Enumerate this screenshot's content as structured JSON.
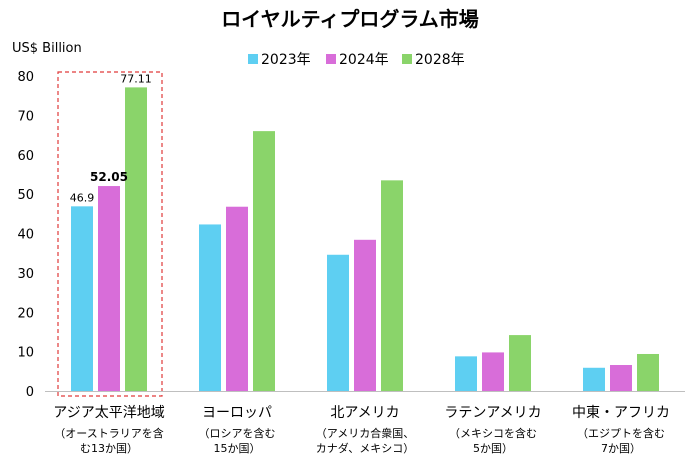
{
  "chart_data": {
    "type": "bar",
    "title": "ロイヤルティプログラム市場",
    "ylabel": "US$ Billion",
    "ylim": [
      0,
      80
    ],
    "yticks": [
      0,
      10,
      20,
      30,
      40,
      50,
      60,
      70,
      80
    ],
    "grid": false,
    "legend_position": "top",
    "categories": [
      "アジア太平洋地域",
      "ヨーロッパ",
      "北アメリカ",
      "ラテンアメリカ",
      "中東・アフリカ"
    ],
    "category_notes": [
      [
        "（オーストラリアを含",
        "む13か国）"
      ],
      [
        "（ロシアを含む",
        "15か国）"
      ],
      [
        "（アメリカ合衆国、",
        "カナダ、メキシコ）"
      ],
      [
        "（メキシコを含む",
        "5か国）"
      ],
      [
        "（エジプトを含む",
        "7か国）"
      ]
    ],
    "series": [
      {
        "name": "2023年",
        "color": "#5ecff2",
        "values": [
          46.9,
          42.3,
          34.6,
          8.8,
          5.9
        ]
      },
      {
        "name": "2024年",
        "color": "#d86dd9",
        "values": [
          52.05,
          46.8,
          38.4,
          9.8,
          6.6
        ]
      },
      {
        "name": "2028年",
        "color": "#8ad46a",
        "values": [
          77.11,
          66.0,
          53.5,
          14.2,
          9.4
        ]
      }
    ],
    "data_labels": [
      {
        "series": 0,
        "category": 0,
        "text": "46.9",
        "bold": false
      },
      {
        "series": 1,
        "category": 0,
        "text": "52.05",
        "bold": true
      },
      {
        "series": 2,
        "category": 0,
        "text": "77.11",
        "bold": false
      }
    ],
    "highlight": {
      "category": 0,
      "style": "dashed",
      "color": "#e03a3a"
    }
  }
}
